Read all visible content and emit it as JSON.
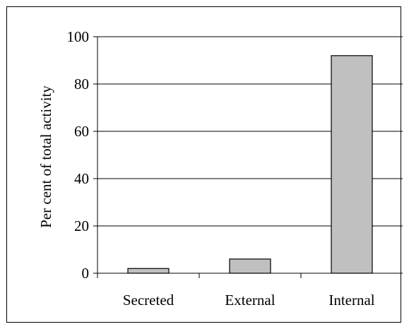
{
  "chart_data": {
    "type": "bar",
    "title": "",
    "xlabel": "",
    "ylabel": "Per cent of total activity",
    "categories": [
      "Secreted",
      "External",
      "Internal"
    ],
    "values": [
      2,
      6,
      92
    ],
    "ylim": [
      0,
      100
    ],
    "yticks": [
      0,
      20,
      40,
      60,
      80,
      100
    ],
    "grid": "horizontal",
    "legend": "none",
    "bar_color": "#c0c0c0",
    "bar_edge_color": "#000000"
  }
}
